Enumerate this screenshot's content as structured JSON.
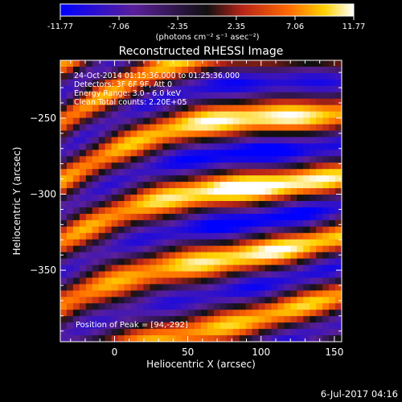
{
  "chart_data": {
    "type": "heatmap",
    "title": "Reconstructed RHESSI Image",
    "xlabel": "Heliocentric X (arcsec)",
    "ylabel": "Heliocentric Y (arcsec)",
    "xlim": [
      -37,
      155
    ],
    "ylim": [
      -397,
      -212
    ],
    "x_ticks": [
      0,
      50,
      100,
      150
    ],
    "y_ticks": [
      -250,
      -300,
      -350
    ],
    "colorbar": {
      "ticks": [
        "-11.77",
        "-7.06",
        "-2.35",
        "2.35",
        "7.06",
        "11.77"
      ],
      "range": [
        -11.77,
        11.77
      ],
      "units_label": "(photons cm⁻² s⁻¹ asec⁻²)",
      "colormap": [
        "#0000ff",
        "#5a1f9a",
        "#101010",
        "#b82418",
        "#ff6a00",
        "#ffd200",
        "#ffffff"
      ]
    },
    "annotations": [
      "24-Oct-2014 01:15:36.000 to 01:25:36.000",
      "Detectors: 3F 6F 9F, Att 0",
      "Energy Range: 3.0 - 6.0 keV",
      "Clean    Total counts: 2.20E+05"
    ],
    "peak_label": "Position of Peak = [94,-292]",
    "peak": [
      94,
      -292
    ],
    "grid": false,
    "image_model": {
      "description_of_fringes": "diagonal fringe bands sloping down to the right",
      "grid_cells": [
        44,
        44
      ]
    }
  },
  "timestamp": "6-Jul-2017 04:16"
}
